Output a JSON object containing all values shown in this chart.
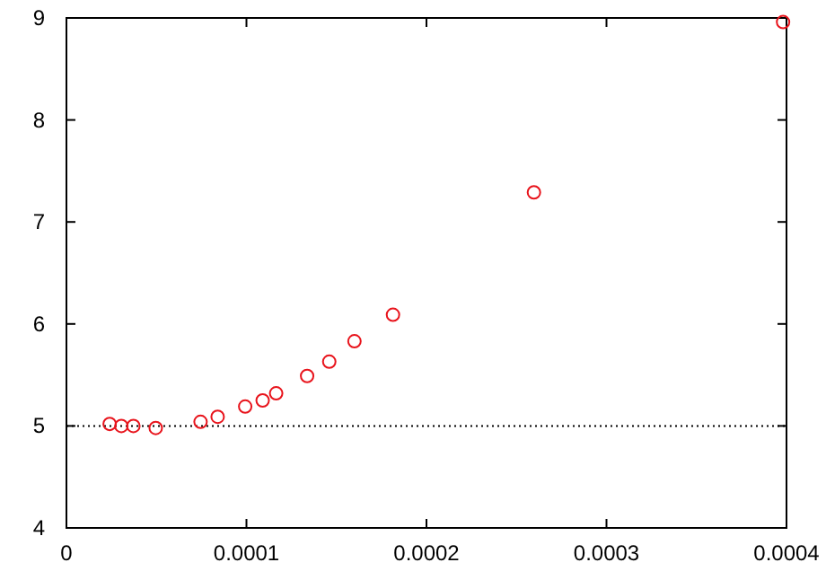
{
  "chart_data": {
    "type": "scatter",
    "x": [
      2.4e-05,
      3.05e-05,
      3.72e-05,
      4.96e-05,
      7.45e-05,
      8.4e-05,
      9.93e-05,
      0.000109,
      0.0001165,
      0.0001337,
      0.000146,
      0.00016,
      0.0001814,
      0.0002597,
      0.0003981
    ],
    "series": [
      {
        "color": "#e8141c",
        "values": [
          5.02,
          5.0,
          5.0,
          4.98,
          5.04,
          5.09,
          5.19,
          5.25,
          5.32,
          5.49,
          5.63,
          5.83,
          6.09,
          7.29,
          8.96
        ]
      }
    ],
    "xlim": [
      0,
      0.0004
    ],
    "xticks": [
      0,
      0.0001,
      0.0002,
      0.0003,
      0.0004
    ],
    "ylim": [
      4,
      9
    ],
    "yticks": [
      4,
      5,
      6,
      7,
      8,
      9
    ],
    "marker": "circle",
    "grid": false,
    "ref_lines": [
      {
        "axis": "y",
        "value": 5,
        "color": "#000000",
        "line_style": "dotted"
      }
    ]
  }
}
